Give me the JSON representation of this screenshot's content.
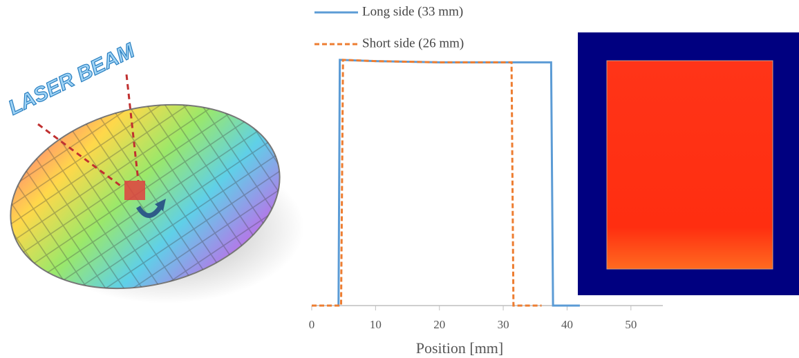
{
  "illustration": {
    "label": "LASER BEAM"
  },
  "chart_data": {
    "type": "line",
    "xlabel": "Position [mm]",
    "xlim": [
      0,
      55
    ],
    "xticks": [
      0,
      10,
      20,
      30,
      40,
      50
    ],
    "ylim": [
      0,
      1.05
    ],
    "series": [
      {
        "name": "Long side (33 mm)",
        "color": "#5b9bd5",
        "dash": false,
        "x": [
          3.8,
          4.2,
          4.4,
          10,
          20,
          30,
          37.5,
          37.8,
          42
        ],
        "values": [
          0,
          0,
          1.0,
          0.995,
          0.99,
          0.99,
          0.99,
          0,
          0
        ]
      },
      {
        "name": "Short side (26 mm)",
        "color": "#ed7d31",
        "dash": true,
        "x": [
          0,
          4.6,
          4.9,
          10,
          20,
          31.3,
          31.6,
          36
        ],
        "values": [
          0,
          0,
          1.0,
          0.995,
          0.99,
          0.99,
          0,
          0
        ]
      }
    ]
  }
}
